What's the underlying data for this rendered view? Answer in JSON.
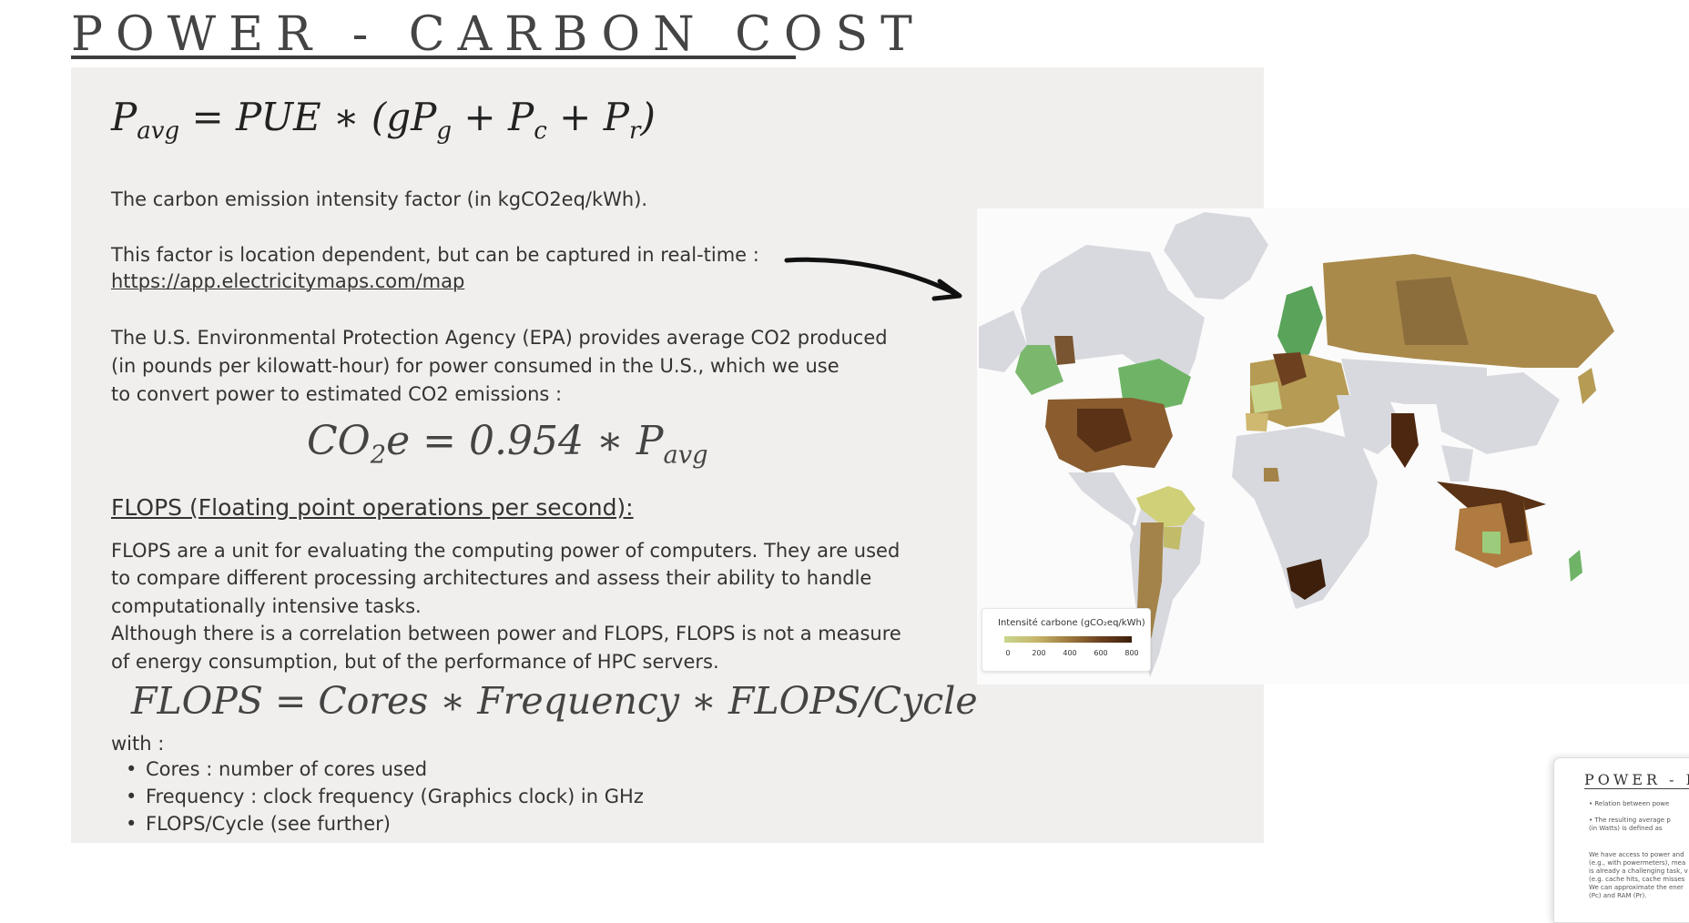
{
  "title": "POWER - CARBON COST",
  "formula_pavg": {
    "lhs": "P",
    "lhs_sub": "avg",
    "rest_a": " = PUE ∗ (gP",
    "sub_g": "g",
    "rest_b": " + P",
    "sub_c": "c",
    "rest_c": " + P",
    "sub_r": "r",
    "rest_d": ")"
  },
  "text": {
    "carbon_factor": "The carbon emission intensity factor (in kgCO2eq/kWh).",
    "location_dependent": "This factor is location dependent, but can be captured in real-time :",
    "link": "https://app.electricitymaps.com/map",
    "epa_line1": "The U.S. Environmental Protection Agency (EPA) provides average CO2 produced",
    "epa_line2": "(in pounds per kilowatt-hour) for power consumed in the U.S., which we use",
    "epa_line3": "to convert power to estimated CO2 emissions :",
    "flops_heading": "FLOPS (Floating point operations per second):",
    "flops_line1": "FLOPS are a unit for evaluating the computing power of computers. They are used",
    "flops_line2": "to compare different processing architectures and assess their ability to handle",
    "flops_line3": "computationally intensive tasks.",
    "flops_line4": "Although there is a correlation between power and FLOPS, FLOPS is not a measure",
    "flops_line5": "of energy consumption, but of the performance of HPC servers.",
    "with": "with :"
  },
  "formula_co2": {
    "a": "CO",
    "sub": "2",
    "b": "e = 0.954 ∗ P",
    "sub2": "avg"
  },
  "formula_flops": "FLOPS = Cores ∗ Frequency ∗ FLOPS/Cycle",
  "bullets": [
    "Cores : number of cores used",
    "Frequency : clock frequency (Graphics clock) in GHz",
    "FLOPS/Cycle  (see further)"
  ],
  "map": {
    "legend_title": "Intensité carbone (gCO₂eq/kWh)",
    "legend_ticks": [
      "0",
      "200",
      "400",
      "600",
      "800"
    ],
    "colors": {
      "land": "#d8d9de",
      "ocean": "#fbfbfb",
      "low": "#7bb86e",
      "mid": "#b69b55",
      "high": "#4d2710"
    }
  },
  "thumbnail": {
    "title": "POWER - F",
    "lines": [
      "• Relation between powe",
      "• The resulting average p",
      "  (in Watts) is defined as",
      "We have access to power and",
      "(e.g., with powermeters), mea",
      "is already a challenging task, v",
      "(e.g. cache hits, cache misses",
      "We can approximate the ener",
      "(Pc) and RAM (Pr)."
    ]
  }
}
